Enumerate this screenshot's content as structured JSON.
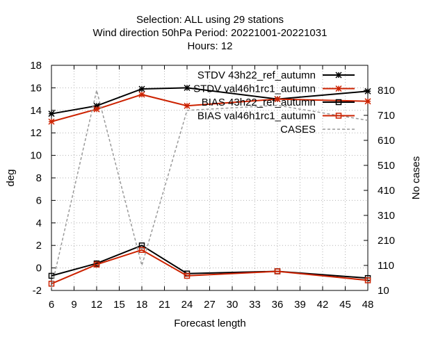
{
  "chart_data": {
    "type": "line",
    "title_lines": [
      "Selection: ALL using    29 stations",
      "Wind direction 50hPa   Period: 20221001-20221031",
      "Hours:  12"
    ],
    "xlabel": "Forecast length",
    "ylabel": "deg",
    "y2label": "No cases",
    "xlim": [
      6,
      48
    ],
    "ylim": [
      -2,
      18
    ],
    "y2lim": [
      10,
      910
    ],
    "xticks": [
      6,
      9,
      12,
      15,
      18,
      21,
      24,
      27,
      30,
      33,
      36,
      39,
      42,
      45,
      48
    ],
    "yticks": [
      -2,
      0,
      2,
      4,
      6,
      8,
      10,
      12,
      14,
      16,
      18
    ],
    "y2ticks": [
      10,
      110,
      210,
      310,
      410,
      510,
      610,
      710,
      810
    ],
    "grid": true,
    "legend_position": "top-right",
    "series": [
      {
        "name": "STDV 43h22_ref_autumn",
        "axis": "y",
        "marker": "star",
        "color": "#000000",
        "dash": "solid",
        "x": [
          6,
          12,
          18,
          24,
          36,
          48
        ],
        "y": [
          13.7,
          14.4,
          15.9,
          16.0,
          15.0,
          15.7
        ]
      },
      {
        "name": "STDV val46h1rc1_autumn",
        "axis": "y",
        "marker": "star",
        "color": "#cc2200",
        "dash": "solid",
        "x": [
          6,
          12,
          18,
          24,
          36,
          48
        ],
        "y": [
          13.0,
          14.1,
          15.4,
          14.4,
          15.0,
          14.8
        ]
      },
      {
        "name": "BIAS 43h22_ref_autumn",
        "axis": "y",
        "marker": "square",
        "color": "#000000",
        "dash": "solid",
        "x": [
          6,
          12,
          18,
          24,
          36,
          48
        ],
        "y": [
          -0.7,
          0.4,
          2.0,
          -0.5,
          -0.3,
          -0.9
        ]
      },
      {
        "name": "BIAS val46h1rc1_autumn",
        "axis": "y",
        "marker": "square",
        "color": "#cc2200",
        "dash": "solid",
        "x": [
          6,
          12,
          18,
          24,
          36,
          48
        ],
        "y": [
          -1.4,
          0.3,
          1.6,
          -0.7,
          -0.3,
          -1.1
        ]
      },
      {
        "name": "CASES",
        "axis": "y2",
        "marker": "none",
        "color": "#999999",
        "dash": "dashed",
        "x": [
          6,
          12,
          18,
          24,
          36,
          48
        ],
        "y": [
          20,
          810,
          110,
          730,
          750,
          690
        ]
      }
    ]
  }
}
